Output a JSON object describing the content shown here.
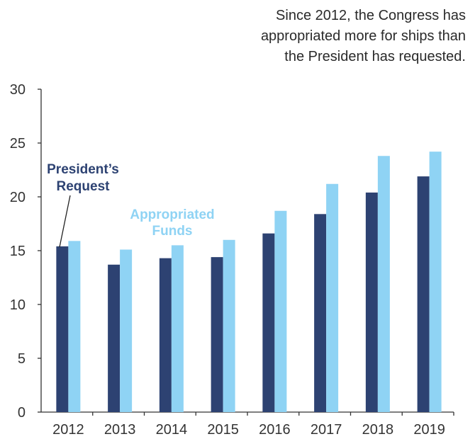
{
  "annotation": {
    "lines": [
      "Since 2012, the Congress has",
      "appropriated more for ships than",
      "the President has requested."
    ]
  },
  "chart_data": {
    "type": "bar",
    "categories": [
      "2012",
      "2013",
      "2014",
      "2015",
      "2016",
      "2017",
      "2018",
      "2019"
    ],
    "series": [
      {
        "name": "President's Request",
        "values": [
          15.4,
          13.7,
          14.3,
          14.4,
          16.6,
          18.4,
          20.4,
          21.9
        ],
        "color": "#2d4272"
      },
      {
        "name": "Appropriated Funds",
        "values": [
          15.9,
          15.1,
          15.5,
          16.0,
          18.7,
          21.2,
          23.8,
          24.2
        ],
        "color": "#8fd3f4"
      }
    ],
    "ylim": [
      0,
      30
    ],
    "yticks": [
      "0",
      "5",
      "10",
      "15",
      "20",
      "25",
      "30"
    ],
    "grid": false,
    "legend": {
      "president": {
        "lines": [
          "President’s",
          "Request"
        ],
        "color": "#2d4272"
      },
      "appropriated": {
        "lines": [
          "Appropriated",
          "Funds"
        ],
        "color": "#8fd3f4"
      }
    }
  }
}
